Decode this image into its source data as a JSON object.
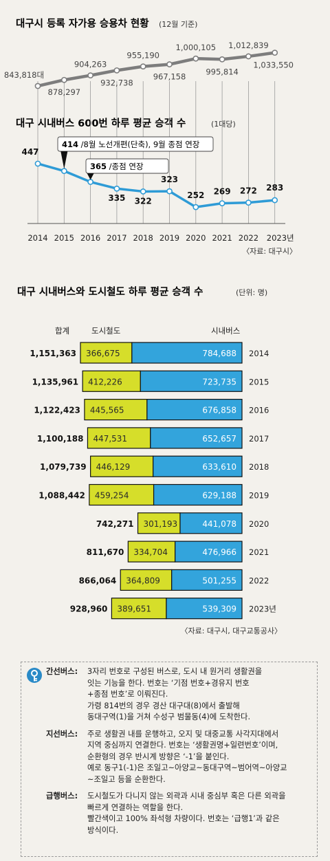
{
  "title1": "대구시 등록 자가용 승용차 현황",
  "title1_note": "(12월 기준)",
  "title2": "대구 시내버스 600번 하루 평균 승객 수",
  "title2_note": "(1대당)",
  "years_axis": [
    "2014",
    "2015",
    "2016",
    "2017",
    "2018",
    "2019",
    "2020",
    "2021",
    "2022",
    "2023년"
  ],
  "source1": "〈자료: 대구시〉",
  "title3": "대구 시내버스와 도시철도 하루 평균 승객 수",
  "title3_note": "(단위: 명)",
  "col_total": "합계",
  "col_subway": "도시철도",
  "col_bus": "시내버스",
  "source2": "〈자료: 대구시, 대구교통공사〉",
  "colors": {
    "car_line": "#7d7d7d",
    "bus_line": "#2e9bd6",
    "subway_bar": "#d6de2a",
    "bus_bar": "#33a4dc",
    "axis": "#555555",
    "key_icon": "#2a8ac7"
  },
  "chart_data": [
    {
      "type": "line",
      "title": "대구시 등록 자가용 승용차 현황",
      "subtitle": "(12월 기준)",
      "x": [
        "2014",
        "2015",
        "2016",
        "2017",
        "2018",
        "2019",
        "2020",
        "2021",
        "2022",
        "2023"
      ],
      "values": [
        843818,
        878297,
        904263,
        932738,
        955190,
        967158,
        1000105,
        995814,
        1012839,
        1033550
      ],
      "labels": [
        "843,818대",
        "878,297",
        "904,263",
        "932,738",
        "955,190",
        "967,158",
        "1,000,105",
        "995,814",
        "1,012,839",
        "1,033,550"
      ]
    },
    {
      "type": "line",
      "title": "대구 시내버스 600번 하루 평균 승객 수",
      "subtitle": "(1대당)",
      "x": [
        "2014",
        "2015",
        "2016",
        "2017",
        "2018",
        "2019",
        "2020",
        "2021",
        "2022",
        "2023"
      ],
      "values": [
        447,
        414,
        365,
        335,
        322,
        323,
        252,
        269,
        272,
        283
      ],
      "labels": [
        "447",
        "414",
        "365",
        "335",
        "322",
        "323",
        "252",
        "269",
        "272",
        "283"
      ],
      "annotations": [
        {
          "x": "2015",
          "value": "414",
          "text": " /8월 노선개편(단축), 9월 종점 연장"
        },
        {
          "x": "2016",
          "value": "365",
          "text": " /종점 연장"
        }
      ]
    },
    {
      "type": "bar",
      "title": "대구 시내버스와 도시철도 하루 평균 승객 수",
      "subtitle": "(단위: 명)",
      "categories": [
        "2014",
        "2015",
        "2016",
        "2017",
        "2018",
        "2019",
        "2020",
        "2021",
        "2022",
        "2023년"
      ],
      "totals": [
        "1,151,363",
        "1,135,961",
        "1,122,423",
        "1,100,188",
        "1,079,739",
        "1,088,442",
        "742,271",
        "811,670",
        "866,064",
        "928,960"
      ],
      "series": [
        {
          "name": "도시철도",
          "values": [
            366675,
            412226,
            445565,
            447531,
            446129,
            459254,
            301193,
            334704,
            364809,
            389651
          ],
          "labels": [
            "366,675",
            "412,226",
            "445,565",
            "447,531",
            "446,129",
            "459,254",
            "301,193",
            "334,704",
            "364,809",
            "389,651"
          ]
        },
        {
          "name": "시내버스",
          "values": [
            784688,
            723735,
            676858,
            652657,
            633610,
            629188,
            441078,
            476966,
            501255,
            539309
          ],
          "labels": [
            "784,688",
            "723,735",
            "676,858",
            "652,657",
            "633,610",
            "629,188",
            "441,078",
            "476,966",
            "501,255",
            "539,309"
          ]
        }
      ]
    }
  ],
  "glossary": [
    {
      "term": "간선버스:",
      "lines": [
        "3자리 번호로 구성된 버스로, 도시 내 원거리 생활권을",
        "잇는 기능을 한다. 번호는 ‘기점 번호+경유지 번호",
        "+종점 번호’로 이뤄진다.",
        "가령 814번의 경우 경산 대구대(8)에서 출발해",
        "동대구역(1)을 거쳐 수성구 범물동(4)에 도착한다."
      ]
    },
    {
      "term": "지선버스:",
      "lines": [
        "주로 생활권 내를 운행하고, 오지 및 대중교통 사각지대에서",
        "지역 중심까지 연결한다. 번호는 ‘생활권명+일련번호’이며,",
        "순환형의 경우 반시계 방향은 ‘-1’을 붙인다.",
        "예로 동구1(-1)은 조일고~아양교~동대구역~범어역~아양교",
        "~조일고 등을 순환한다."
      ]
    },
    {
      "term": "급행버스:",
      "lines": [
        "도시철도가 다니지 않는 외곽과 시내 중심부 혹은 다른 외곽을",
        "빠르게 연결하는 역할을 한다.",
        "빨간색이고 100% 좌석형 차량이다. 번호는 ‘급행1’과 같은",
        "방식이다."
      ]
    }
  ]
}
